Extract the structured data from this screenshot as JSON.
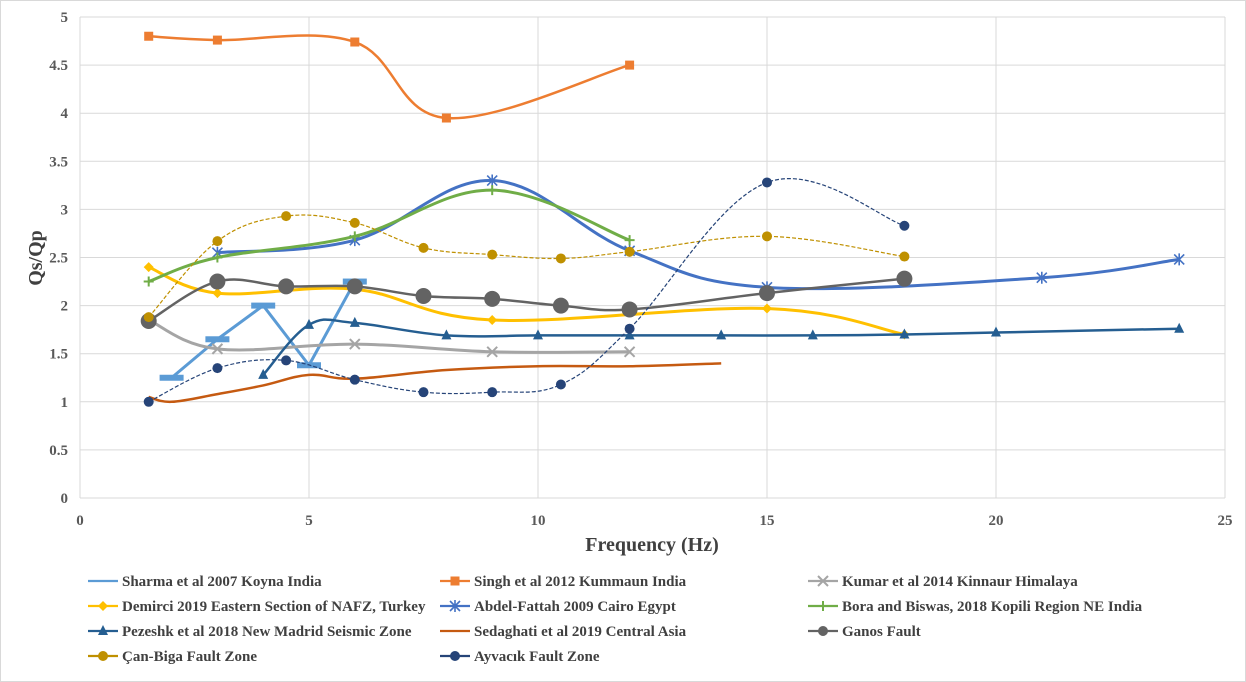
{
  "chart_data": {
    "type": "line",
    "title": "",
    "xlabel": "Frequency (Hz)",
    "ylabel": "Qs/Qp",
    "xlim": [
      0,
      25
    ],
    "ylim": [
      0,
      5
    ],
    "x_ticks": [
      "0",
      "5",
      "10",
      "15",
      "20",
      "25"
    ],
    "y_ticks": [
      "0",
      "0.5",
      "1",
      "1.5",
      "2",
      "2.5",
      "3",
      "3.5",
      "4",
      "4.5",
      "5"
    ],
    "grid": true,
    "legend_position": "bottom",
    "series": [
      {
        "name": "Sharma et al 2007 Koyna India",
        "color": "#5b9bd5",
        "marker": "dash",
        "smooth": false,
        "x": [
          2,
          3,
          4,
          5,
          6
        ],
        "y": [
          1.25,
          1.65,
          2.0,
          1.38,
          2.25
        ]
      },
      {
        "name": "Singh et al 2012 Kummaun India",
        "color": "#ed7d31",
        "marker": "square",
        "smooth": true,
        "x": [
          1.5,
          3,
          6,
          8,
          12
        ],
        "y": [
          4.8,
          4.76,
          4.74,
          3.95,
          4.5
        ]
      },
      {
        "name": "Kumar et al 2014 Kinnaur Himalaya",
        "color": "#a5a5a5",
        "marker": "x",
        "smooth": true,
        "x": [
          1.5,
          3,
          6,
          9,
          12
        ],
        "y": [
          1.85,
          1.55,
          1.6,
          1.52,
          1.52
        ]
      },
      {
        "name": "Demirci 2019 Eastern Section of NAFZ, Turkey",
        "color": "#ffc000",
        "marker": "diamond",
        "smooth": true,
        "x": [
          1.5,
          3,
          6,
          9,
          15,
          18
        ],
        "y": [
          2.4,
          2.13,
          2.17,
          1.85,
          1.97,
          1.7
        ]
      },
      {
        "name": "Abdel-Fattah 2009 Cairo Egypt",
        "color": "#4472c4",
        "marker": "star",
        "smooth": true,
        "x": [
          3,
          6,
          9,
          12,
          15,
          21,
          24
        ],
        "y": [
          2.55,
          2.68,
          3.3,
          2.57,
          2.19,
          2.29,
          2.48
        ]
      },
      {
        "name": "Bora and Biswas, 2018 Kopili Region NE India",
        "color": "#70ad47",
        "marker": "plus",
        "smooth": true,
        "x": [
          1.5,
          3,
          6,
          9,
          12
        ],
        "y": [
          2.25,
          2.5,
          2.72,
          3.2,
          2.68
        ]
      },
      {
        "name": "Pezeshk et al 2018 New Madrid Seismic Zone",
        "color": "#255e91",
        "marker": "triangle",
        "smooth": true,
        "x": [
          4,
          5,
          6,
          8,
          10,
          12,
          14,
          16,
          18,
          20,
          24
        ],
        "y": [
          1.28,
          1.8,
          1.82,
          1.69,
          1.69,
          1.69,
          1.69,
          1.69,
          1.7,
          1.72,
          1.76
        ]
      },
      {
        "name": "Sedaghati et al 2019 Central Asia",
        "color": "#c55a11",
        "marker": "none",
        "smooth": true,
        "x": [
          1.5,
          2,
          3,
          4,
          5,
          6,
          8,
          10,
          12,
          14
        ],
        "y": [
          1.05,
          1.0,
          1.08,
          1.17,
          1.28,
          1.24,
          1.33,
          1.37,
          1.37,
          1.4
        ]
      },
      {
        "name": "Ganos Fault",
        "color": "#636363",
        "marker": "circle-large",
        "smooth": true,
        "x": [
          1.5,
          3,
          4.5,
          6,
          7.5,
          9,
          10.5,
          12,
          15,
          18
        ],
        "y": [
          1.84,
          2.25,
          2.2,
          2.2,
          2.1,
          2.07,
          2.0,
          1.96,
          2.13,
          2.28
        ]
      },
      {
        "name": "Çan-Biga Fault Zone",
        "color": "#bf9000",
        "marker": "circle",
        "smooth": true,
        "dashed": true,
        "x": [
          1.5,
          3,
          4.5,
          6,
          7.5,
          9,
          10.5,
          12,
          15,
          18
        ],
        "y": [
          1.88,
          2.67,
          2.93,
          2.86,
          2.6,
          2.53,
          2.49,
          2.56,
          2.72,
          2.51
        ]
      },
      {
        "name": "Ayvacık Fault Zone",
        "color": "#264478",
        "marker": "circle",
        "smooth": true,
        "dashed": true,
        "x": [
          1.5,
          3,
          4.5,
          6,
          7.5,
          9,
          10.5,
          12,
          15,
          18
        ],
        "y": [
          1.0,
          1.35,
          1.43,
          1.23,
          1.1,
          1.1,
          1.18,
          1.76,
          3.28,
          2.83
        ]
      }
    ]
  }
}
